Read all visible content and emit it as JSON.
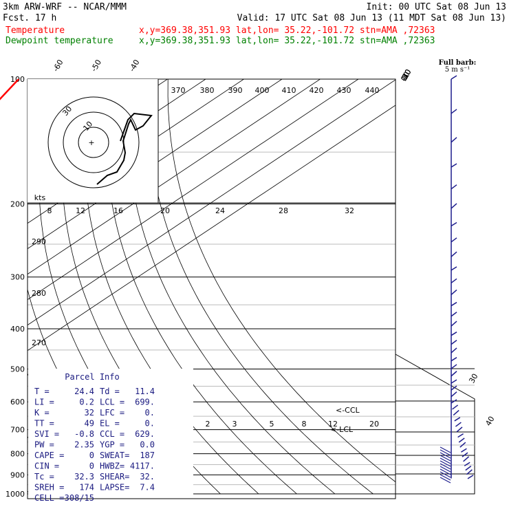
{
  "header": {
    "model": "3km ARW-WRF -- NCAR/MMM",
    "init": "Init: 00 UTC Sat 08 Jun 13",
    "fcst": "Fcst.   17 h",
    "valid": "Valid: 17 UTC Sat 08 Jun 13 (11 MDT Sat 08 Jun 13)",
    "temp_label": "Temperature",
    "temp_info": "x,y=369.38,351.93   lat,lon= 35.22,-101.72  stn=AMA ,72363",
    "dew_label": "Dewpoint temperature",
    "dew_info": "x,y=369.38,351.93   lat,lon= 35.22,-101.72  stn=AMA ,72363",
    "barb_title": "Full barb:",
    "barb_units": "5 m s⁻¹"
  },
  "colors": {
    "temperature": "#ff0000",
    "dewpoint": "#008000",
    "wind_barbs": "#1c1c8c",
    "parcel_text": "#1a1a80",
    "grid": "#000000"
  },
  "chart_data": [
    {
      "type": "line",
      "title": "Skew-T log-P",
      "pressure_levels": [
        100,
        200,
        300,
        400,
        500,
        600,
        700,
        800,
        900,
        1000
      ],
      "skewed_temp_labels": [
        "-80",
        "-70",
        "-60",
        "-50",
        "-40",
        "-30",
        "-20",
        "-10",
        "0",
        "10",
        "20",
        "30",
        "40"
      ],
      "theta_labels": [
        "290",
        "280",
        "270"
      ],
      "mixing_ratio_labels": [
        "2",
        "3",
        "5",
        "8",
        "12",
        "20"
      ],
      "annotations": [
        "<-CCL",
        "<-LCL"
      ],
      "series": [
        {
          "name": "Temperature",
          "points": [
            [
              100,
              -69
            ],
            [
              130,
              -62
            ],
            [
              160,
              -57
            ],
            [
              190,
              -54
            ],
            [
              200,
              -55
            ],
            [
              230,
              -55
            ],
            [
              260,
              -52
            ],
            [
              300,
              -45
            ],
            [
              350,
              -36
            ],
            [
              400,
              -27
            ],
            [
              450,
              -19
            ],
            [
              500,
              -12
            ],
            [
              550,
              -7
            ],
            [
              600,
              -2
            ],
            [
              650,
              3
            ],
            [
              700,
              7
            ],
            [
              750,
              11
            ],
            [
              800,
              13
            ],
            [
              850,
              18
            ],
            [
              870,
              24
            ]
          ]
        },
        {
          "name": "Dewpoint temperature",
          "points": [
            [
              100,
              -97
            ],
            [
              130,
              -102
            ],
            [
              160,
              -105
            ],
            [
              190,
              -97
            ],
            [
              200,
              -96
            ],
            [
              230,
              -85
            ],
            [
              260,
              -80
            ],
            [
              300,
              -72
            ],
            [
              350,
              -58
            ],
            [
              400,
              -45
            ],
            [
              450,
              -38
            ],
            [
              500,
              -34
            ],
            [
              550,
              -22
            ],
            [
              600,
              -15
            ],
            [
              650,
              -10
            ],
            [
              700,
              -4
            ],
            [
              750,
              -1
            ],
            [
              790,
              -1
            ],
            [
              820,
              7
            ],
            [
              850,
              11
            ]
          ]
        }
      ]
    },
    {
      "type": "scatter",
      "title": "Hodograph",
      "unit_label": "kts",
      "ring_labels": [
        "10",
        "20",
        "30"
      ],
      "speed_axis_labels": [
        "8",
        "12",
        "16",
        "20",
        "24",
        "28",
        "32"
      ],
      "height_labels": [
        "370",
        "380",
        "390",
        "400",
        "410",
        "420",
        "430",
        "440"
      ],
      "path_uv": [
        [
          -9,
          -25
        ],
        [
          -12,
          -28
        ],
        [
          -15,
          -27
        ],
        [
          -12,
          -25
        ],
        [
          -4,
          -14
        ],
        [
          -2,
          -3
        ],
        [
          -6,
          8
        ],
        [
          -1,
          16
        ],
        [
          10,
          24
        ],
        [
          6,
          28
        ]
      ]
    }
  ],
  "wind_profile": {
    "pressures": [
      100,
      150,
      200,
      250,
      300,
      350,
      400,
      450,
      500,
      550,
      600,
      650,
      700,
      750,
      800,
      850,
      900
    ],
    "directions_deg": [
      270,
      265,
      260,
      265,
      270,
      275,
      270,
      260,
      250,
      240,
      230,
      220,
      210,
      200,
      190,
      180,
      175
    ],
    "speeds_knots": [
      45,
      50,
      55,
      55,
      50,
      45,
      40,
      35,
      30,
      25,
      20,
      15,
      12,
      10,
      8,
      6,
      5
    ]
  },
  "parcel_info": {
    "title": "Parcel Info",
    "rows": [
      [
        "T  =",
        "24.4",
        "Td =",
        "11.4"
      ],
      [
        "LI =",
        "0.2",
        "LCL =",
        "699."
      ],
      [
        "K  =",
        "32",
        "LFC =",
        "0."
      ],
      [
        "TT =",
        "49",
        "EL  =",
        "0."
      ],
      [
        "SVI =",
        "-0.8",
        "CCL =",
        "629."
      ],
      [
        "PW =",
        "2.35",
        "YGP =",
        "0.0"
      ],
      [
        "CAPE =",
        "0",
        "SWEAT=",
        "187"
      ],
      [
        "CIN =",
        "0",
        "HWBZ=",
        "4117."
      ],
      [
        "Tc =",
        "32.3",
        "SHEAR=",
        "32."
      ],
      [
        "SREH =",
        "174",
        "LAPSE=",
        "7.4"
      ],
      [
        "CELL =",
        "308/15",
        "",
        ""
      ]
    ]
  }
}
